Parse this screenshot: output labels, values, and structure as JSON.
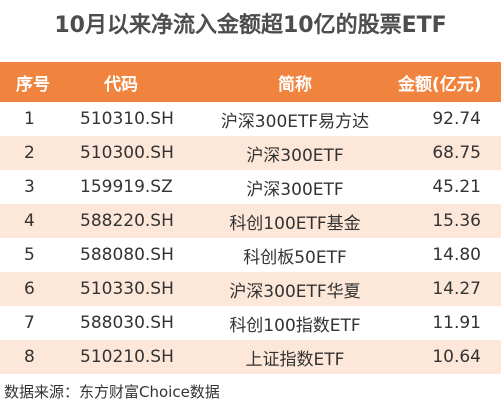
{
  "title": "10月以来净流入金额超10亿的股票ETF",
  "columns": [
    "序号",
    "代码",
    "简称",
    "金额(亿元)"
  ],
  "rows": [
    {
      "rank": "1",
      "code": "510310.SH",
      "name": "沪深300ETF易方达",
      "amount": "92.74"
    },
    {
      "rank": "2",
      "code": "510300.SH",
      "name": "沪深300ETF",
      "amount": "68.75"
    },
    {
      "rank": "3",
      "code": "159919.SZ",
      "name": "沪深300ETF",
      "amount": "45.21"
    },
    {
      "rank": "4",
      "code": "588220.SH",
      "name": "科创100ETF基金",
      "amount": "15.36"
    },
    {
      "rank": "5",
      "code": "588080.SH",
      "name": "科创板50ETF",
      "amount": "14.80"
    },
    {
      "rank": "6",
      "code": "510330.SH",
      "name": "沪深300ETF华夏",
      "amount": "14.27"
    },
    {
      "rank": "7",
      "code": "588030.SH",
      "name": "科创100指数ETF",
      "amount": "11.91"
    },
    {
      "rank": "8",
      "code": "510210.SH",
      "name": "上证指数ETF",
      "amount": "10.64"
    }
  ],
  "source": "数据来源：东方财富Choice数据",
  "colors": {
    "header_bg": "#f0833d",
    "stripe": "#fde7d8",
    "header_text": "#ffffff"
  }
}
